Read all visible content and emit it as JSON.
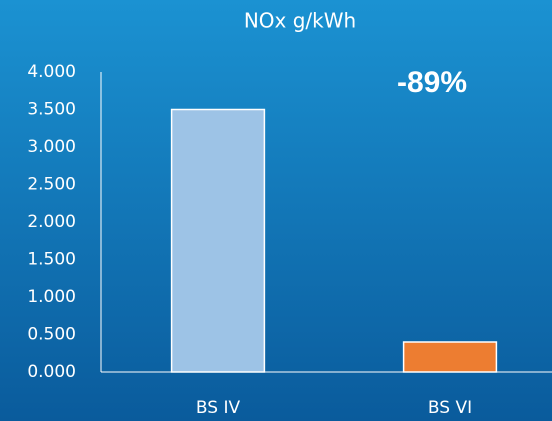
{
  "chart_data": {
    "type": "bar",
    "title": "NOx g/kWh",
    "categories": [
      "BS IV",
      "BS VI"
    ],
    "series": [
      {
        "name": null,
        "colors": [
          "#9dc3e6",
          "#ed7d31"
        ],
        "values": [
          3.5,
          0.4
        ]
      }
    ],
    "ylim": [
      0,
      4
    ],
    "yticks": [
      {
        "value": 0,
        "label": "0.000"
      },
      {
        "value": 0.5,
        "label": "0.500"
      },
      {
        "value": 1,
        "label": "1.000"
      },
      {
        "value": 1.5,
        "label": "1.500"
      },
      {
        "value": 2,
        "label": "2.000"
      },
      {
        "value": 2.5,
        "label": "2.500"
      },
      {
        "value": 3,
        "label": "3.000"
      },
      {
        "value": 3.5,
        "label": "3.500"
      },
      {
        "value": 4,
        "label": "4.000"
      }
    ],
    "grid": false,
    "annotations": [
      "-89%"
    ]
  }
}
